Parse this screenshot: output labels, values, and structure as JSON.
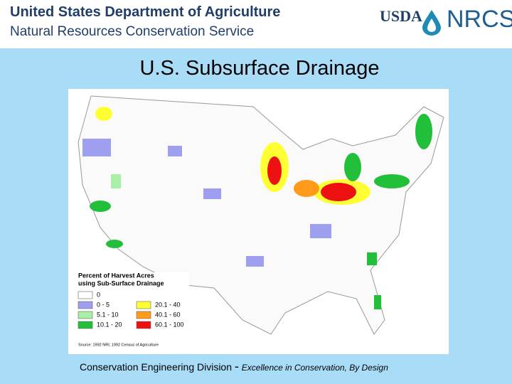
{
  "header": {
    "line1": "United States Department of Agriculture",
    "line2": "Natural Resources Conservation Service",
    "logo_left": "USDA",
    "logo_right": "NRCS"
  },
  "title": "U.S. Subsurface Drainage",
  "map": {
    "legend": {
      "title_line1": "Percent of Harvest Acres",
      "title_line2": "using Sub-Surface Drainage",
      "items": [
        {
          "label": "0",
          "color": "#ffffff"
        },
        {
          "label": "0 - 5",
          "color": "#9f9ff0"
        },
        {
          "label": "5.1 - 10",
          "color": "#a8f0a8"
        },
        {
          "label": "10.1 - 20",
          "color": "#22c03a"
        },
        {
          "label": "20.1 - 40",
          "color": "#ffff33"
        },
        {
          "label": "40.1 - 60",
          "color": "#ff9a1a"
        },
        {
          "label": "60.1 - 100",
          "color": "#ee1111"
        }
      ]
    },
    "source": "Source: 1992 NRI; 1992 Census of Agriculture"
  },
  "footer": {
    "division": "Conservation Engineering Division",
    "separator": "-",
    "tagline": "Excellence in Conservation, By Design"
  }
}
